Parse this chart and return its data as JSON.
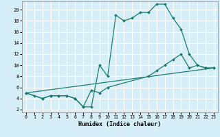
{
  "xlabel": "Humidex (Indice chaleur)",
  "bg_color": "#d6eef8",
  "grid_color": "#ffffff",
  "line_color": "#1a7a6e",
  "xlim": [
    -0.5,
    23.5
  ],
  "ylim": [
    1.5,
    21.5
  ],
  "xticks": [
    0,
    1,
    2,
    3,
    4,
    5,
    6,
    7,
    8,
    9,
    10,
    11,
    12,
    13,
    14,
    15,
    16,
    17,
    18,
    19,
    20,
    21,
    22,
    23
  ],
  "yticks": [
    2,
    4,
    6,
    8,
    10,
    12,
    14,
    16,
    18,
    20
  ],
  "series": [
    {
      "x": [
        0,
        1,
        2,
        3,
        4,
        5,
        6,
        7,
        8,
        9,
        10,
        11,
        12,
        13,
        14,
        15,
        16,
        17,
        18,
        19,
        20,
        21,
        22,
        23
      ],
      "y": [
        5,
        4.5,
        4,
        4.5,
        4.5,
        4.5,
        4,
        2.5,
        2.5,
        10,
        8,
        19,
        18,
        18.5,
        19.5,
        19.5,
        21,
        21,
        18.5,
        16.5,
        12,
        10,
        9.5,
        9.5
      ],
      "has_markers": true
    },
    {
      "x": [
        0,
        2,
        3,
        4,
        5,
        6,
        7,
        8,
        9,
        10,
        15,
        16,
        17,
        18,
        19,
        20,
        21,
        22,
        23
      ],
      "y": [
        5,
        4,
        4.5,
        4.5,
        4.5,
        4,
        2.5,
        5.5,
        5,
        6,
        8,
        9,
        10,
        11,
        12,
        9.5,
        10,
        9.5,
        9.5
      ],
      "has_markers": true
    },
    {
      "x": [
        0,
        23
      ],
      "y": [
        5,
        9.5
      ],
      "has_markers": false
    }
  ]
}
